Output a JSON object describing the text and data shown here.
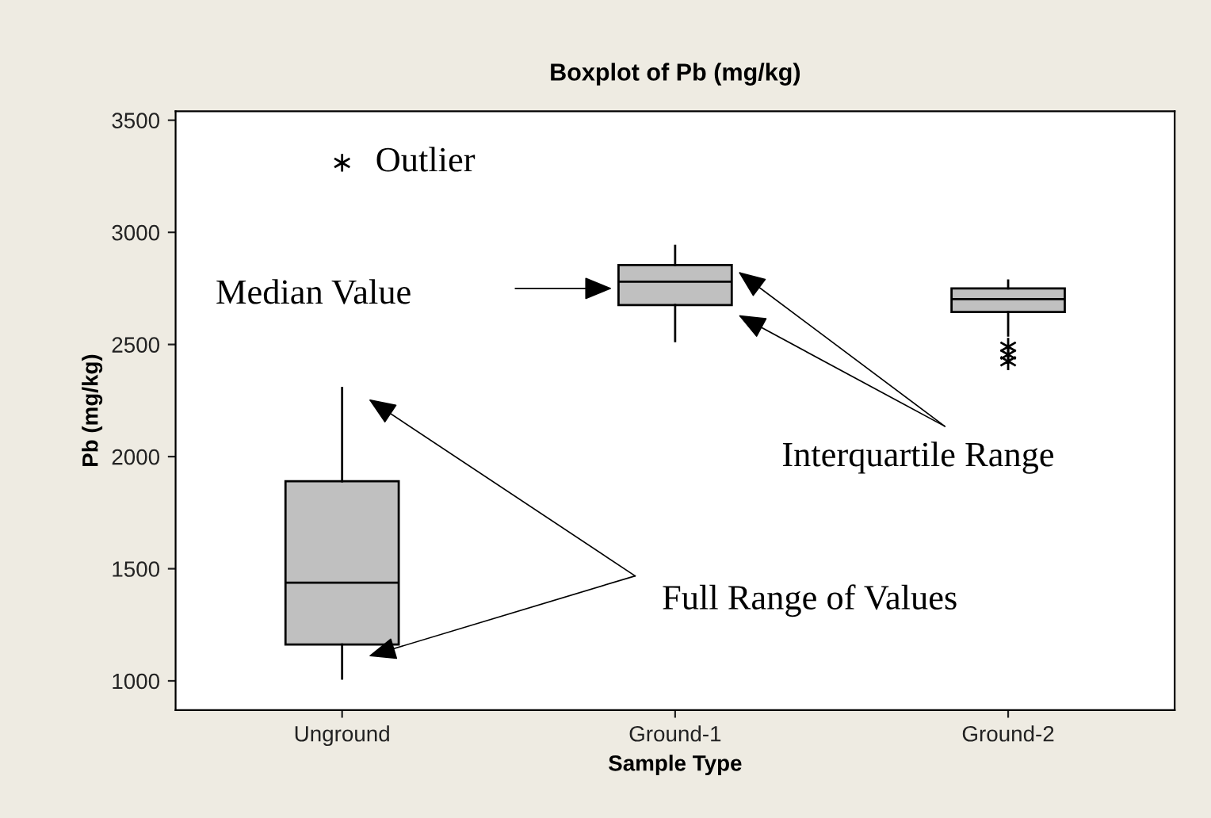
{
  "chart_data": {
    "type": "box",
    "title": "Boxplot of Pb (mg/kg)",
    "xlabel": "Sample Type",
    "ylabel": "Pb (mg/kg)",
    "categories": [
      "Unground",
      "Ground-1",
      "Ground-2"
    ],
    "series": [
      {
        "color": "#c0c0c0",
        "boxes": [
          {
            "low": 1010,
            "q1": 1162,
            "median": 1438,
            "q3": 1890,
            "high": 2306
          },
          {
            "low": 2515,
            "q1": 2676,
            "median": 2780,
            "q3": 2854,
            "high": 2940
          },
          {
            "low": 2540,
            "q1": 2645,
            "median": 2702,
            "q3": 2750,
            "high": 2785,
            "outliers": [
              2490,
              2455,
              2425
            ]
          }
        ]
      }
    ],
    "ylim": [
      870,
      3540
    ],
    "yticks": [
      1000,
      1500,
      2000,
      2500,
      3000,
      3500
    ],
    "grid": false,
    "marker": "star",
    "annotations": [
      "Outlier",
      "Median Value",
      "Interquartile Range",
      "Full Range of Values"
    ]
  }
}
